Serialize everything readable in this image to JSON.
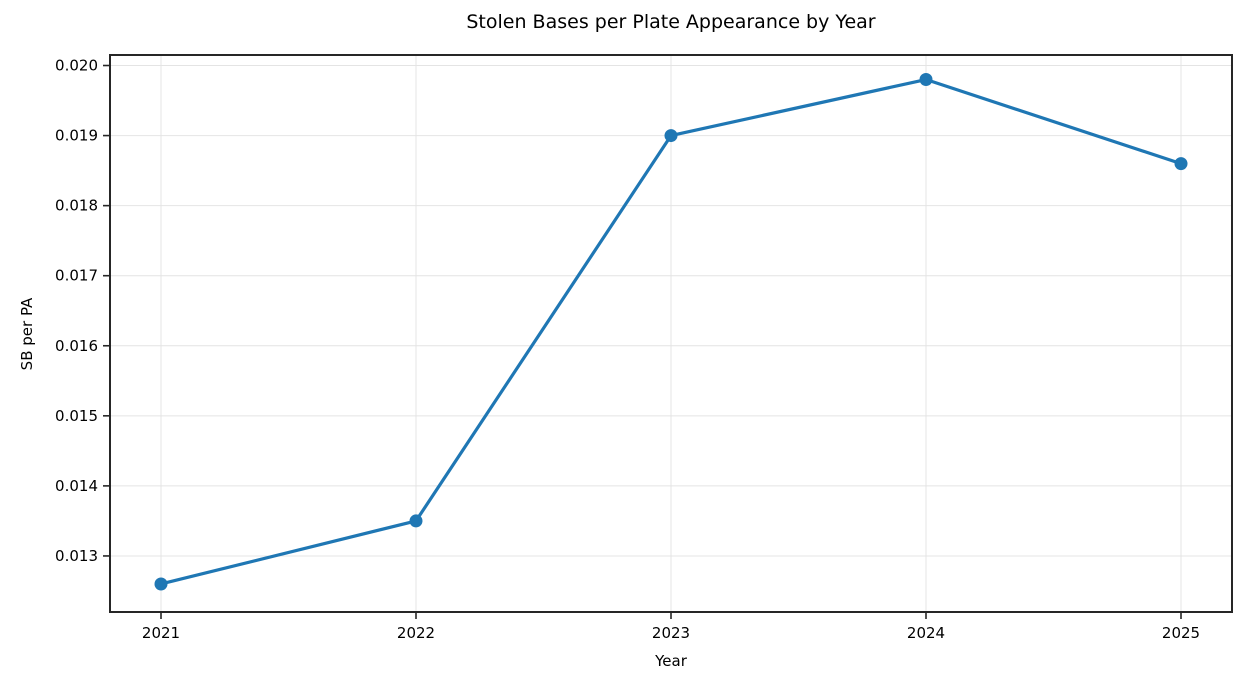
{
  "chart_data": {
    "type": "line",
    "title": "Stolen Bases per Plate Appearance by Year",
    "xlabel": "Year",
    "ylabel": "SB per PA",
    "x": [
      2021,
      2022,
      2023,
      2024,
      2025
    ],
    "y": [
      0.0126,
      0.0135,
      0.019,
      0.0198,
      0.0186
    ],
    "series": [
      {
        "name": "SB per PA",
        "values": [
          0.0126,
          0.0135,
          0.019,
          0.0198,
          0.0186
        ]
      }
    ],
    "xlim": [
      2020.8,
      2025.2
    ],
    "ylim": [
      0.0122,
      0.02015
    ],
    "xtick_values": [
      2021,
      2022,
      2023,
      2024,
      2025
    ],
    "xtick_labels": [
      "2021",
      "2022",
      "2023",
      "2024",
      "2025"
    ],
    "ytick_values": [
      0.013,
      0.014,
      0.015,
      0.016,
      0.017,
      0.018,
      0.019,
      0.02
    ],
    "ytick_labels": [
      "0.013",
      "0.014",
      "0.015",
      "0.016",
      "0.017",
      "0.018",
      "0.019",
      "0.020"
    ],
    "grid": true,
    "legend": "none",
    "marker": "o",
    "colors": {
      "line": "#1f77b4",
      "marker": "#1f77b4",
      "grid": "#e4e4e4",
      "spine": "#262626",
      "tick": "#262626",
      "text": "#000000",
      "background": "#ffffff"
    }
  }
}
